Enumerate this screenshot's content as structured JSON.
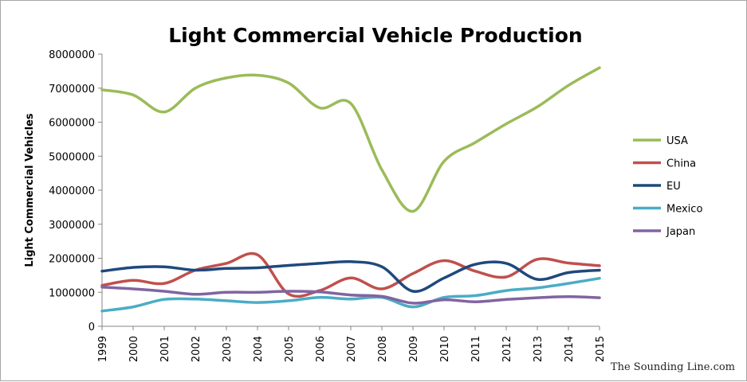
{
  "chart_data": {
    "type": "line",
    "title": "Light Commercial Vehicle Production",
    "xlabel": "",
    "ylabel": "Light Commercial Vehicles",
    "x": [
      "1999",
      "2000",
      "2001",
      "2002",
      "2003",
      "2004",
      "2005",
      "2006",
      "2007",
      "2008",
      "2009",
      "2010",
      "2011",
      "2012",
      "2013",
      "2014",
      "2015"
    ],
    "ylim": [
      0,
      8000000
    ],
    "yticks": [
      "0",
      "1000000",
      "2000000",
      "3000000",
      "4000000",
      "5000000",
      "6000000",
      "7000000",
      "8000000"
    ],
    "legend_position": "right",
    "grid": false,
    "series": [
      {
        "name": "USA",
        "color": "#9bbb59",
        "values": [
          6950000,
          6800000,
          6300000,
          7000000,
          7300000,
          7380000,
          7150000,
          6420000,
          6550000,
          4600000,
          3380000,
          4850000,
          5400000,
          5950000,
          6450000,
          7080000,
          7600000
        ]
      },
      {
        "name": "China",
        "color": "#c0504d",
        "values": [
          1200000,
          1350000,
          1260000,
          1650000,
          1850000,
          2100000,
          950000,
          1050000,
          1420000,
          1100000,
          1550000,
          1930000,
          1620000,
          1450000,
          1970000,
          1860000,
          1780000
        ]
      },
      {
        "name": "EU",
        "color": "#1f497d",
        "values": [
          1620000,
          1730000,
          1750000,
          1650000,
          1700000,
          1720000,
          1790000,
          1850000,
          1900000,
          1750000,
          1030000,
          1420000,
          1820000,
          1850000,
          1380000,
          1580000,
          1650000
        ]
      },
      {
        "name": "Mexico",
        "color": "#4bacc6",
        "values": [
          450000,
          570000,
          790000,
          800000,
          750000,
          700000,
          750000,
          850000,
          800000,
          850000,
          570000,
          850000,
          900000,
          1050000,
          1130000,
          1260000,
          1410000
        ]
      },
      {
        "name": "Japan",
        "color": "#8064a2",
        "values": [
          1150000,
          1100000,
          1030000,
          940000,
          1000000,
          1000000,
          1030000,
          1010000,
          920000,
          880000,
          680000,
          780000,
          720000,
          790000,
          840000,
          870000,
          840000
        ]
      }
    ]
  },
  "watermark": "The Sounding Line.com"
}
